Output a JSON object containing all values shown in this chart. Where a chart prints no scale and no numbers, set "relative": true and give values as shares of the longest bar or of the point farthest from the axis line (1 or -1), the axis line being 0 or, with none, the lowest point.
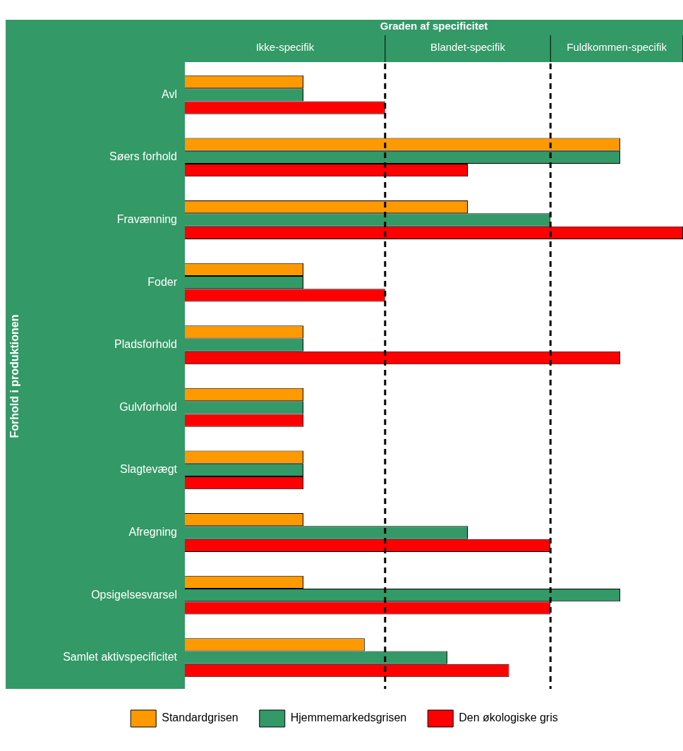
{
  "chart_data": {
    "type": "bar",
    "orientation": "horizontal",
    "relative": true,
    "xlabel": "Graden af specificitet",
    "ylabel": "Forhold i produktionen",
    "categories": [
      "Avl",
      "Søers forhold",
      "Fravænning",
      "Foder",
      "Pladsforhold",
      "Gulvforhold",
      "Slagtevægt",
      "Afregning",
      "Opsigelsesvarsel",
      "Samlet aktivspecificitet"
    ],
    "series": [
      {
        "name": "Standardgrisen",
        "color": "#ff9900",
        "values": [
          0.238,
          0.874,
          0.568,
          0.238,
          0.238,
          0.238,
          0.238,
          0.238,
          0.238,
          0.361
        ]
      },
      {
        "name": "Hjemmemarkedsgrisen",
        "color": "#339966",
        "values": [
          0.238,
          0.874,
          0.734,
          0.238,
          0.238,
          0.238,
          0.238,
          0.568,
          0.874,
          0.527
        ]
      },
      {
        "name": "Den økologiske gris",
        "color": "#ff0000",
        "values": [
          0.402,
          0.568,
          1,
          0.402,
          0.874,
          0.238,
          0.238,
          0.734,
          0.734,
          0.651
        ]
      }
    ],
    "ref_lines": [
      {
        "axis": "x",
        "value": 0.402,
        "line_style": "dashed"
      },
      {
        "axis": "x",
        "value": 0.734,
        "line_style": "dashed"
      }
    ],
    "annotations": [
      "Ikke-specifik",
      "Blandet-specifik",
      "Fuldkommen-specifik"
    ],
    "legend": "bottom"
  }
}
